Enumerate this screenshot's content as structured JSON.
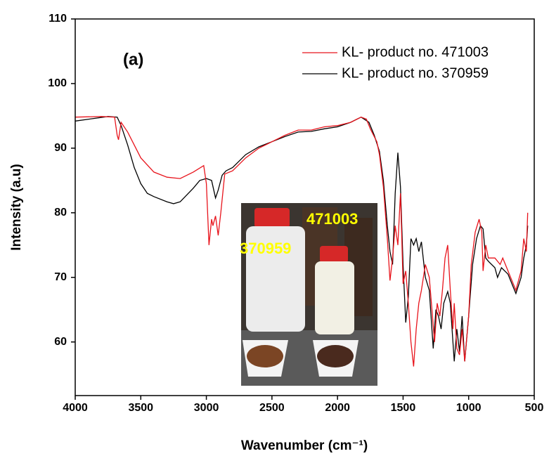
{
  "chart_data": {
    "type": "line",
    "x_label": "Wavenumber (cm⁻¹)",
    "y_label": "Intensity (a.u)",
    "xlim": [
      4000,
      500
    ],
    "ylim": [
      51.7,
      110
    ],
    "xticks": [
      4000,
      3500,
      3000,
      2500,
      2000,
      1500,
      1000,
      500
    ],
    "yticks": [
      60,
      70,
      80,
      90,
      100,
      110
    ],
    "legend": "upper right",
    "annotations": [
      {
        "text": "(a)"
      },
      {
        "text": "471003"
      },
      {
        "text": "370959"
      }
    ],
    "series": [
      {
        "name": "KL- product no. 471003",
        "color": "#e8141c",
        "x": [
          4000,
          3800,
          3700,
          3680,
          3670,
          3650,
          3600,
          3500,
          3400,
          3300,
          3200,
          3100,
          3020,
          3000,
          2980,
          2960,
          2950,
          2930,
          2910,
          2890,
          2860,
          2800,
          2700,
          2600,
          2500,
          2400,
          2300,
          2200,
          2100,
          2000,
          1900,
          1820,
          1780,
          1750,
          1700,
          1680,
          1650,
          1620,
          1600,
          1580,
          1560,
          1540,
          1520,
          1510,
          1500,
          1480,
          1460,
          1440,
          1420,
          1400,
          1380,
          1360,
          1330,
          1300,
          1280,
          1260,
          1240,
          1220,
          1200,
          1180,
          1160,
          1140,
          1120,
          1110,
          1090,
          1070,
          1050,
          1030,
          1000,
          980,
          950,
          920,
          900,
          890,
          870,
          850,
          800,
          760,
          740,
          700,
          680,
          640,
          600,
          580,
          560,
          550
        ],
        "values": [
          94.8,
          94.9,
          94.8,
          92,
          91.3,
          94,
          92.5,
          88.5,
          86.3,
          85.5,
          85.3,
          86.3,
          87.3,
          84.5,
          75,
          79,
          78,
          79.5,
          76.5,
          80,
          86,
          86.5,
          88.5,
          90,
          91,
          92,
          92.8,
          92.8,
          93.3,
          93.5,
          94,
          94.8,
          94.5,
          93,
          91,
          89,
          84,
          76,
          69.5,
          73,
          78,
          75,
          83,
          76,
          69,
          71,
          66,
          60,
          56.2,
          62,
          66,
          68,
          72,
          70,
          65,
          60,
          66,
          64,
          68,
          73,
          75,
          68,
          62,
          66,
          59,
          58,
          62,
          57,
          64,
          72,
          77,
          79,
          77,
          71,
          75,
          73,
          73,
          72,
          73,
          71,
          70,
          68,
          71,
          76,
          74,
          80
        ]
      },
      {
        "name": "KL- product no. 370959",
        "color": "#000000",
        "x": [
          4000,
          3750,
          3680,
          3650,
          3600,
          3550,
          3500,
          3450,
          3400,
          3300,
          3250,
          3200,
          3100,
          3050,
          3000,
          2960,
          2930,
          2910,
          2880,
          2850,
          2800,
          2700,
          2600,
          2500,
          2400,
          2300,
          2200,
          2100,
          2000,
          1900,
          1820,
          1760,
          1720,
          1680,
          1650,
          1620,
          1600,
          1580,
          1560,
          1540,
          1520,
          1500,
          1480,
          1460,
          1440,
          1420,
          1400,
          1380,
          1360,
          1330,
          1300,
          1270,
          1250,
          1230,
          1210,
          1190,
          1160,
          1140,
          1110,
          1090,
          1070,
          1050,
          1030,
          1000,
          970,
          940,
          910,
          890,
          870,
          850,
          800,
          780,
          750,
          700,
          660,
          640,
          600,
          580,
          560,
          550
        ],
        "values": [
          94.2,
          94.9,
          94.8,
          93.5,
          90.5,
          87,
          84.5,
          83,
          82.5,
          81.7,
          81.4,
          81.7,
          83.8,
          85,
          85.3,
          85,
          82.3,
          83.5,
          85.8,
          86.5,
          87,
          89,
          90.2,
          91,
          91.8,
          92.5,
          92.6,
          93,
          93.3,
          94,
          94.8,
          94,
          92,
          89.5,
          85,
          78,
          74,
          72,
          83,
          89.3,
          84,
          72,
          63,
          67,
          76,
          75,
          76,
          74,
          75.5,
          70,
          68,
          59,
          65,
          64,
          62,
          66,
          67.8,
          66,
          57,
          62,
          58.5,
          64,
          57,
          64,
          72,
          76,
          78,
          77.5,
          73,
          72.5,
          71.5,
          70,
          71.5,
          70.5,
          68.5,
          67.5,
          70,
          73,
          75,
          78
        ]
      }
    ]
  }
}
